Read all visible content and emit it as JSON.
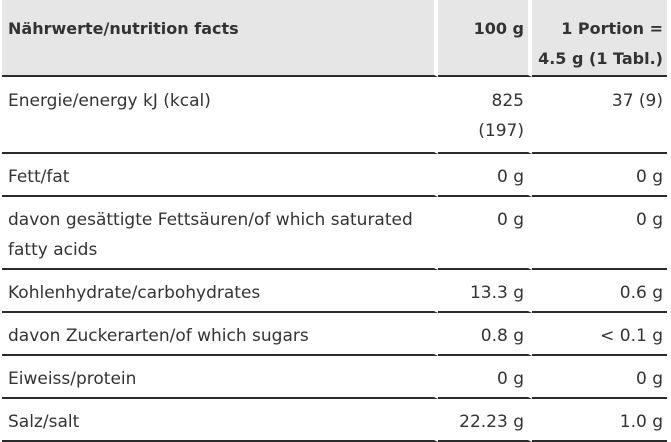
{
  "header": {
    "label": "Nährwerte/nutrition facts",
    "per100": "100 g",
    "portion_line1": "1 Portion =",
    "portion_line2": "4.5 g (1 Tabl.)"
  },
  "rows": [
    {
      "label": "Energie/energy kJ (kcal)",
      "per100_line1": "825",
      "per100_line2": "(197)",
      "portion": "37 (9)"
    },
    {
      "label": "Fett/fat",
      "per100": "0 g",
      "portion": "0 g"
    },
    {
      "label_line1": "davon gesättigte Fettsäuren/of which saturated",
      "label_line2": "fatty acids",
      "per100": "0 g",
      "portion": "0 g"
    },
    {
      "label": "Kohlenhydrate/carbohydrates",
      "per100": "13.3 g",
      "portion": "0.6 g"
    },
    {
      "label": "davon Zuckerarten/of which sugars",
      "per100": "0.8 g",
      "portion": "< 0.1 g"
    },
    {
      "label": "Eiweiss/protein",
      "per100": "0 g",
      "portion": "0 g"
    },
    {
      "label": "Salz/salt",
      "per100": "22.23 g",
      "portion": "1.0 g"
    }
  ]
}
